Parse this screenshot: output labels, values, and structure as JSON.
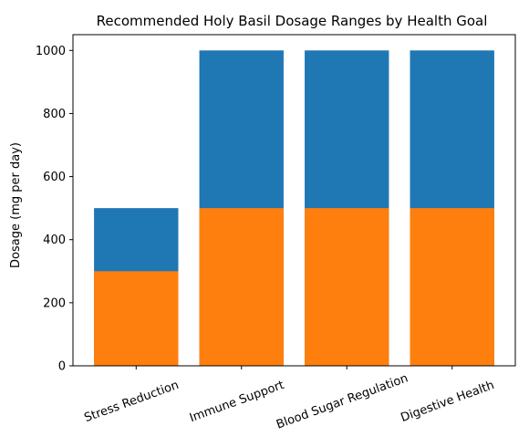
{
  "chart_data": {
    "type": "bar",
    "title": "Recommended Holy Basil Dosage Ranges by Health Goal",
    "xlabel": "",
    "ylabel": "Dosage (mg per day)",
    "categories": [
      "Stress Reduction",
      "Immune Support",
      "Blood Sugar Regulation",
      "Digestive Health"
    ],
    "series": [
      {
        "values": [
          500,
          1000,
          1000,
          1000
        ],
        "color": "#1f77b4"
      },
      {
        "values": [
          300,
          500,
          500,
          500
        ],
        "color": "#ff7f0e"
      }
    ],
    "ylim": [
      0,
      1050
    ],
    "yticks": [
      0,
      200,
      400,
      600,
      800,
      1000
    ],
    "xtick_rotation": -20,
    "grid": false,
    "legend": "none"
  }
}
